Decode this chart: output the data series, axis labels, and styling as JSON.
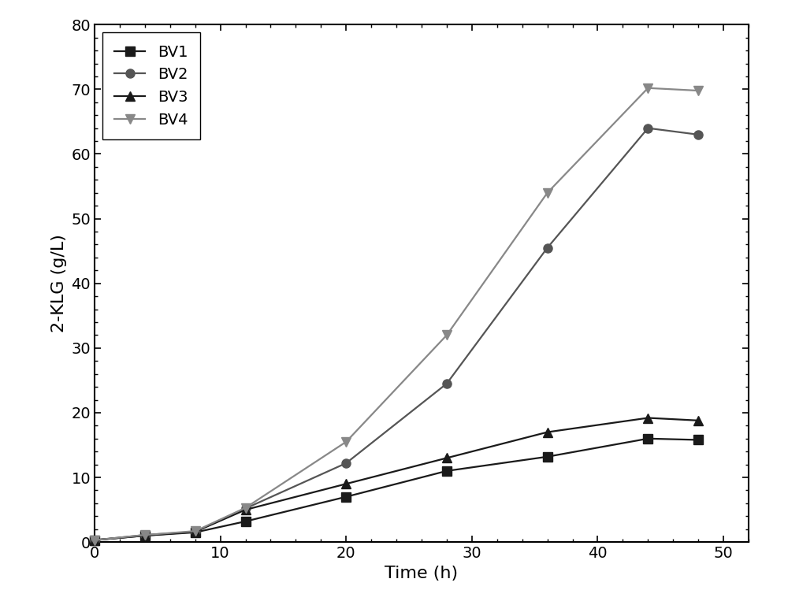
{
  "title": "",
  "xlabel": "Time (h)",
  "ylabel": "2-KLG (g/L)",
  "xlim": [
    0,
    52
  ],
  "ylim": [
    0,
    80
  ],
  "xticks": [
    0,
    10,
    20,
    30,
    40,
    50
  ],
  "yticks": [
    0,
    10,
    20,
    30,
    40,
    50,
    60,
    70,
    80
  ],
  "series": [
    {
      "label": "BV1",
      "x": [
        0,
        4,
        8,
        12,
        20,
        28,
        36,
        44,
        48
      ],
      "y": [
        0.3,
        1.0,
        1.5,
        3.2,
        7.0,
        11.0,
        13.2,
        16.0,
        15.8
      ],
      "color": "#1a1a1a",
      "marker": "s",
      "markersize": 8,
      "linewidth": 1.6
    },
    {
      "label": "BV2",
      "x": [
        0,
        4,
        8,
        12,
        20,
        28,
        36,
        44,
        48
      ],
      "y": [
        0.3,
        1.1,
        1.6,
        5.2,
        12.2,
        24.5,
        45.5,
        64.0,
        63.0
      ],
      "color": "#555555",
      "marker": "o",
      "markersize": 8,
      "linewidth": 1.6
    },
    {
      "label": "BV3",
      "x": [
        0,
        4,
        8,
        12,
        20,
        28,
        36,
        44,
        48
      ],
      "y": [
        0.3,
        1.0,
        1.6,
        5.0,
        9.0,
        13.0,
        17.0,
        19.2,
        18.8
      ],
      "color": "#1a1a1a",
      "marker": "^",
      "markersize": 8,
      "linewidth": 1.6
    },
    {
      "label": "BV4",
      "x": [
        0,
        4,
        8,
        12,
        20,
        28,
        36,
        44,
        48
      ],
      "y": [
        0.3,
        1.1,
        1.7,
        5.3,
        15.5,
        32.0,
        54.0,
        70.2,
        69.8
      ],
      "color": "#888888",
      "marker": "v",
      "markersize": 8,
      "linewidth": 1.6
    }
  ],
  "legend_loc": "upper left",
  "background_color": "#ffffff",
  "axis_color": "#000000",
  "label_fontsize": 16,
  "tick_fontsize": 14,
  "legend_fontsize": 14,
  "minor_xtick_interval": 2,
  "minor_ytick_interval": 2
}
